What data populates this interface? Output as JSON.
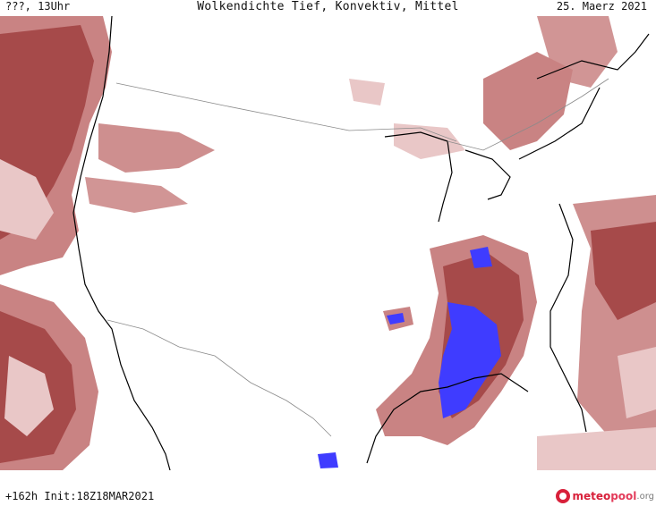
{
  "header": {
    "left_label": "???, 13Uhr",
    "title": "Wolkendichte   Tief, Konvektiv, Mittel",
    "date": "25. Maerz 2021"
  },
  "footer": {
    "forecast_info": "+162h  Init:18Z18MAR2021",
    "logo_part1": "meteo",
    "logo_part2": "pool",
    "logo_part3": ".org"
  },
  "map": {
    "colors": {
      "cloud_light": "#e9c7c7",
      "cloud_medium": "#c98383",
      "cloud_dense": "#a64a4a",
      "convective": "#3f3cff",
      "coastline": "#000000",
      "border": "#8a8a8a"
    }
  }
}
